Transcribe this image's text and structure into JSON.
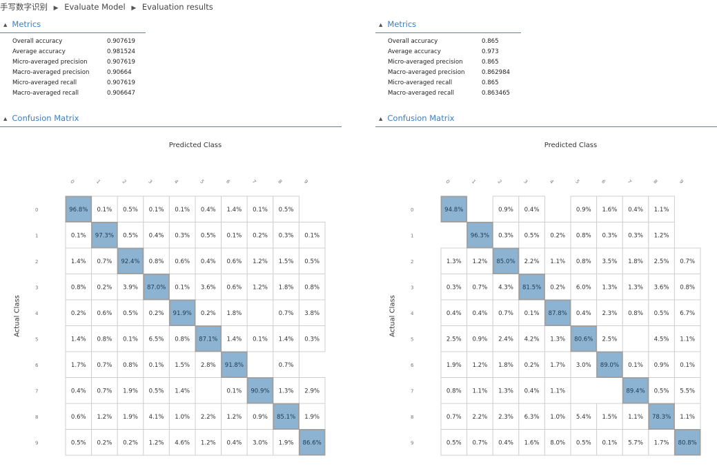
{
  "breadcrumb": [
    "手写数字识别",
    "Evaluate Model",
    "Evaluation results"
  ],
  "panels": [
    {
      "metrics_title": "Metrics",
      "metrics": [
        {
          "label": "Overall accuracy",
          "value": "0.907619"
        },
        {
          "label": "Average accuracy",
          "value": "0.981524"
        },
        {
          "label": "Micro-averaged precision",
          "value": "0.907619"
        },
        {
          "label": "Macro-averaged precision",
          "value": "0.90664"
        },
        {
          "label": "Micro-averaged recall",
          "value": "0.907619"
        },
        {
          "label": "Macro-averaged recall",
          "value": "0.906647"
        }
      ],
      "confusion_title": "Confusion Matrix",
      "predicted_label": "Predicted Class",
      "actual_label": "Actual Class",
      "classes": [
        "0",
        "1",
        "2",
        "3",
        "4",
        "5",
        "6",
        "7",
        "8",
        "9"
      ],
      "matrix": [
        [
          "96.8%",
          "0.1%",
          "0.5%",
          "0.1%",
          "0.1%",
          "0.4%",
          "1.4%",
          "0.1%",
          "0.5%",
          ""
        ],
        [
          "0.1%",
          "97.3%",
          "0.5%",
          "0.4%",
          "0.3%",
          "0.5%",
          "0.1%",
          "0.2%",
          "0.3%",
          "0.1%"
        ],
        [
          "1.4%",
          "0.7%",
          "92.4%",
          "0.8%",
          "0.6%",
          "0.4%",
          "0.6%",
          "1.2%",
          "1.5%",
          "0.5%"
        ],
        [
          "0.8%",
          "0.2%",
          "3.9%",
          "87.0%",
          "0.1%",
          "3.6%",
          "0.6%",
          "1.2%",
          "1.8%",
          "0.8%"
        ],
        [
          "0.2%",
          "0.6%",
          "0.5%",
          "0.2%",
          "91.9%",
          "0.2%",
          "1.8%",
          "",
          "0.7%",
          "3.8%"
        ],
        [
          "1.4%",
          "0.8%",
          "0.1%",
          "6.5%",
          "0.8%",
          "87.1%",
          "1.4%",
          "0.1%",
          "1.4%",
          "0.3%"
        ],
        [
          "1.7%",
          "0.7%",
          "0.8%",
          "0.1%",
          "1.5%",
          "2.8%",
          "91.8%",
          "",
          "0.7%",
          ""
        ],
        [
          "0.4%",
          "0.7%",
          "1.9%",
          "0.5%",
          "1.4%",
          "",
          "0.1%",
          "90.9%",
          "1.3%",
          "2.9%"
        ],
        [
          "0.6%",
          "1.2%",
          "1.9%",
          "4.1%",
          "1.0%",
          "2.2%",
          "1.2%",
          "0.9%",
          "85.1%",
          "1.9%"
        ],
        [
          "0.5%",
          "0.2%",
          "0.2%",
          "1.2%",
          "4.6%",
          "1.2%",
          "0.4%",
          "3.0%",
          "1.9%",
          "86.6%"
        ]
      ]
    },
    {
      "metrics_title": "Metrics",
      "metrics": [
        {
          "label": "Overall accuracy",
          "value": "0.865"
        },
        {
          "label": "Average accuracy",
          "value": "0.973"
        },
        {
          "label": "Micro-averaged precision",
          "value": "0.865"
        },
        {
          "label": "Macro-averaged precision",
          "value": "0.862984"
        },
        {
          "label": "Micro-averaged recall",
          "value": "0.865"
        },
        {
          "label": "Macro-averaged recall",
          "value": "0.863465"
        }
      ],
      "confusion_title": "Confusion Matrix",
      "predicted_label": "Predicted Class",
      "actual_label": "Actual Class",
      "classes": [
        "0",
        "1",
        "2",
        "3",
        "4",
        "5",
        "6",
        "7",
        "8",
        "9"
      ],
      "matrix": [
        [
          "94.8%",
          "",
          "0.9%",
          "0.4%",
          "",
          "0.9%",
          "1.6%",
          "0.4%",
          "1.1%",
          ""
        ],
        [
          "",
          "96.3%",
          "0.3%",
          "0.5%",
          "0.2%",
          "0.8%",
          "0.3%",
          "0.3%",
          "1.2%",
          ""
        ],
        [
          "1.3%",
          "1.2%",
          "85.0%",
          "2.2%",
          "1.1%",
          "0.8%",
          "3.5%",
          "1.8%",
          "2.5%",
          "0.7%"
        ],
        [
          "0.3%",
          "0.7%",
          "4.3%",
          "81.5%",
          "0.2%",
          "6.0%",
          "1.3%",
          "1.3%",
          "3.6%",
          "0.8%"
        ],
        [
          "0.4%",
          "0.4%",
          "0.7%",
          "0.1%",
          "87.8%",
          "0.4%",
          "2.3%",
          "0.8%",
          "0.5%",
          "6.7%"
        ],
        [
          "2.5%",
          "0.9%",
          "2.4%",
          "4.2%",
          "1.3%",
          "80.6%",
          "2.5%",
          "",
          "4.5%",
          "1.1%"
        ],
        [
          "1.9%",
          "1.2%",
          "1.8%",
          "0.2%",
          "1.7%",
          "3.0%",
          "89.0%",
          "0.1%",
          "0.9%",
          "0.1%"
        ],
        [
          "0.8%",
          "1.1%",
          "1.3%",
          "0.4%",
          "1.1%",
          "",
          "",
          "89.4%",
          "0.5%",
          "5.5%"
        ],
        [
          "0.7%",
          "2.2%",
          "2.3%",
          "6.3%",
          "1.0%",
          "5.4%",
          "1.5%",
          "1.1%",
          "78.3%",
          "1.1%"
        ],
        [
          "0.5%",
          "0.7%",
          "0.4%",
          "1.6%",
          "8.0%",
          "0.5%",
          "0.1%",
          "5.7%",
          "1.7%",
          "80.8%"
        ]
      ]
    }
  ],
  "colors": {
    "accent": "#3a7fc1",
    "diag_fill": "#8cb4d2",
    "diag_border": "#a0a0a0",
    "cell_border": "#cfcfcf",
    "rule": "#5b7f9d"
  }
}
